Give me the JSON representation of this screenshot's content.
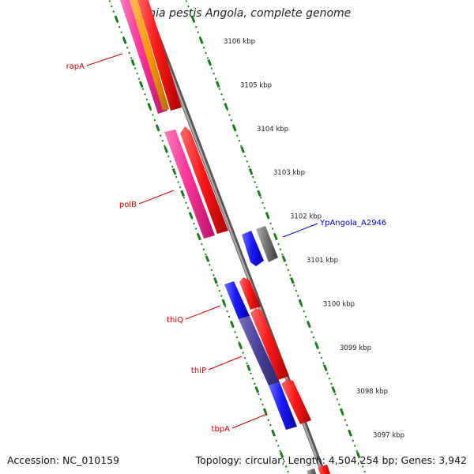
{
  "title": "Yersinia pestis Angola, complete genome",
  "footer": {
    "accession": "Accession: NC_010159",
    "summary": "Topology: circular; Length: 4,504,254 bp; Genes: 3,942"
  },
  "colors": {
    "backbone": "#8c8c8c",
    "tick": "#1b7a1b",
    "label_forward": "#cc0000",
    "label_other": "#0000cc",
    "red": "#ff1a1a",
    "pink": "#ff3399",
    "orange": "#ff9900",
    "blue": "#1a1aff",
    "purple": "#4a3f99",
    "gray": "#707070"
  },
  "scale_labels": [
    {
      "kbp": 3106,
      "text": "3106 kbp"
    },
    {
      "kbp": 3105,
      "text": "3105 kbp"
    },
    {
      "kbp": 3104,
      "text": "3104 kbp"
    },
    {
      "kbp": 3103,
      "text": "3103 kbp"
    },
    {
      "kbp": 3102,
      "text": "3102 kbp"
    },
    {
      "kbp": 3101,
      "text": "3101 kbp"
    },
    {
      "kbp": 3100,
      "text": "3100 kbp"
    },
    {
      "kbp": 3099,
      "text": "3099 kbp"
    },
    {
      "kbp": 3098,
      "text": "3098 kbp"
    },
    {
      "kbp": 3097,
      "text": "3097 kbp"
    }
  ],
  "gene_labels": [
    {
      "name": "rapA",
      "color": "label_forward"
    },
    {
      "name": "polB",
      "color": "label_forward"
    },
    {
      "name": "thiQ",
      "color": "label_forward"
    },
    {
      "name": "thiP",
      "color": "label_forward"
    },
    {
      "name": "tbpA",
      "color": "label_forward"
    },
    {
      "name": "YpAngola_A2946",
      "color": "label_other"
    }
  ]
}
